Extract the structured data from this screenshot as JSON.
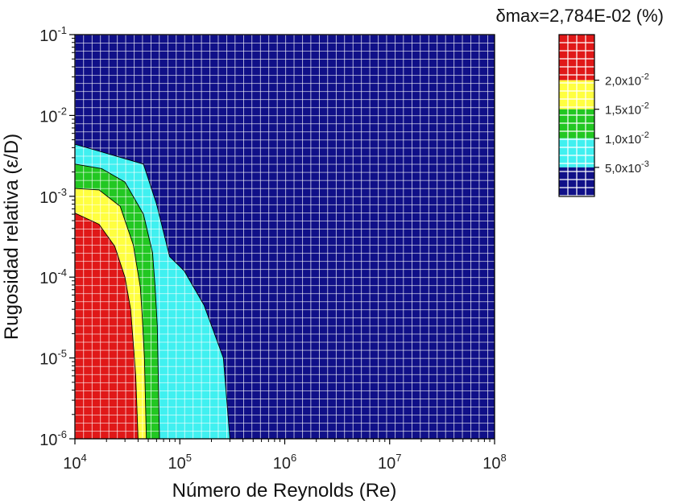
{
  "chart_data": {
    "type": "heatmap",
    "title": "δmax=2,784E-02 (%)",
    "xlabel": "Número de Reynolds (Re)",
    "ylabel": "Rugosidad relativa (ε/D)",
    "x_scale": "log",
    "y_scale": "log",
    "xlim": [
      10000,
      100000000
    ],
    "ylim": [
      1e-06,
      0.1
    ],
    "x_ticks": [
      {
        "value": 10000,
        "base": "10",
        "exp": "4"
      },
      {
        "value": 100000,
        "base": "10",
        "exp": "5"
      },
      {
        "value": 1000000,
        "base": "10",
        "exp": "6"
      },
      {
        "value": 10000000,
        "base": "10",
        "exp": "7"
      },
      {
        "value": 100000000,
        "base": "10",
        "exp": "8"
      }
    ],
    "y_ticks": [
      {
        "value": 1e-06,
        "base": "10",
        "exp": "-6"
      },
      {
        "value": 1e-05,
        "base": "10",
        "exp": "-5"
      },
      {
        "value": 0.0001,
        "base": "10",
        "exp": "-4"
      },
      {
        "value": 0.001,
        "base": "10",
        "exp": "-3"
      },
      {
        "value": 0.01,
        "base": "10",
        "exp": "-2"
      },
      {
        "value": 0.1,
        "base": "10",
        "exp": "-1"
      }
    ],
    "levels": [
      {
        "min": 0.02,
        "max": 0.02784,
        "color": "#e01818"
      },
      {
        "min": 0.015,
        "max": 0.02,
        "color": "#ffff40"
      },
      {
        "min": 0.01,
        "max": 0.015,
        "color": "#22c722"
      },
      {
        "min": 0.005,
        "max": 0.01,
        "color": "#40f0f0"
      },
      {
        "min": 0,
        "max": 0.005,
        "color": "#101088"
      }
    ],
    "colorbar_ticks": [
      {
        "value": 0.02,
        "mantissa": "2,0x10",
        "exp": "-2"
      },
      {
        "value": 0.015,
        "mantissa": "1,5x10",
        "exp": "-2"
      },
      {
        "value": 0.01,
        "mantissa": "1,0x10",
        "exp": "-2"
      },
      {
        "value": 0.005,
        "mantissa": "5,0x10",
        "exp": "-3"
      }
    ],
    "contours": [
      {
        "level": 0.02,
        "points": [
          [
            10000,
            0.00062
          ],
          [
            17000,
            0.00045
          ],
          [
            24000,
            0.00024
          ],
          [
            30000,
            0.0001
          ],
          [
            34000,
            4e-05
          ],
          [
            36000,
            1.5e-05
          ],
          [
            38000,
            6e-06
          ],
          [
            40000,
            1e-06
          ]
        ]
      },
      {
        "level": 0.015,
        "points": [
          [
            10000,
            0.00125
          ],
          [
            17000,
            0.0012
          ],
          [
            27000,
            0.00075
          ],
          [
            36000,
            0.00025
          ],
          [
            42000,
            7.5e-05
          ],
          [
            44000,
            3e-05
          ],
          [
            46000,
            1e-05
          ],
          [
            48000,
            1e-06
          ]
        ]
      },
      {
        "level": 0.01,
        "points": [
          [
            10000,
            0.0025
          ],
          [
            18000,
            0.0022
          ],
          [
            30000,
            0.0015
          ],
          [
            45000,
            0.0006
          ],
          [
            55000,
            0.0002
          ],
          [
            58000,
            8e-05
          ],
          [
            61000,
            2.5e-05
          ],
          [
            64000,
            1e-06
          ]
        ]
      },
      {
        "level": 0.005,
        "points": [
          [
            10000,
            0.0044
          ],
          [
            20000,
            0.0034
          ],
          [
            45000,
            0.0025
          ],
          [
            60000,
            0.0008
          ],
          [
            80000,
            0.00018
          ],
          [
            110000,
            0.00012
          ],
          [
            170000,
            4.5e-05
          ],
          [
            260000,
            1e-05
          ],
          [
            300000,
            1e-06
          ]
        ]
      }
    ]
  }
}
